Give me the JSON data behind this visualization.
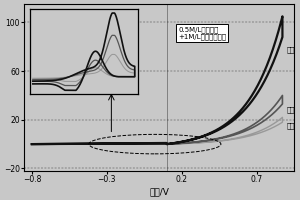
{
  "xlabel": "电压/V",
  "xlim": [
    -0.85,
    0.95
  ],
  "ylim": [
    -22,
    115
  ],
  "yticks": [
    -20,
    20,
    60,
    100
  ],
  "xticks": [
    -0.8,
    -0.3,
    0.2,
    0.7
  ],
  "annotation_text": "0.5M/L甲醇溶液\n+1M/L氪氧化鿨溶液",
  "legend_labels": [
    "第一",
    "第二",
    "第三"
  ],
  "bg_color": "#c8c8c8",
  "curve_colors": [
    "#999999",
    "#555555",
    "#111111"
  ],
  "curve_lws": [
    1.0,
    1.2,
    1.6
  ],
  "peaks_fwd": [
    22,
    40,
    105
  ],
  "peaks_rev": [
    18,
    33,
    88
  ]
}
